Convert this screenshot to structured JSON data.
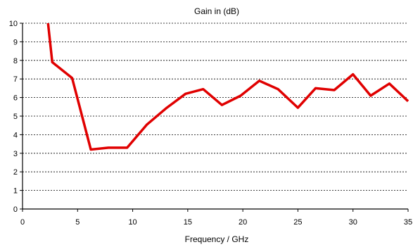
{
  "chart_data": {
    "type": "line",
    "title": "Gain in (dB)",
    "xlabel": "Frequency / GHz",
    "ylabel": "",
    "xlim": [
      0,
      35
    ],
    "ylim": [
      0,
      10
    ],
    "xticks": [
      0,
      5,
      10,
      15,
      20,
      25,
      30,
      35
    ],
    "yticks": [
      0,
      1,
      2,
      3,
      4,
      5,
      6,
      7,
      8,
      9,
      10
    ],
    "grid": "horizontal dashed",
    "series": [
      {
        "color": "#e00000",
        "x": [
          2.3,
          2.7,
          4.5,
          6.2,
          7.8,
          9.5,
          11.3,
          13.1,
          14.8,
          16.4,
          18.1,
          19.8,
          21.5,
          23.2,
          25.0,
          26.6,
          28.3,
          30.0,
          31.6,
          33.3,
          35.0
        ],
        "y": [
          10.1,
          7.9,
          7.05,
          3.2,
          3.3,
          3.3,
          4.55,
          5.45,
          6.2,
          6.45,
          5.6,
          6.1,
          6.9,
          6.45,
          5.45,
          6.5,
          6.4,
          7.25,
          6.1,
          6.75,
          5.8
        ]
      }
    ]
  }
}
